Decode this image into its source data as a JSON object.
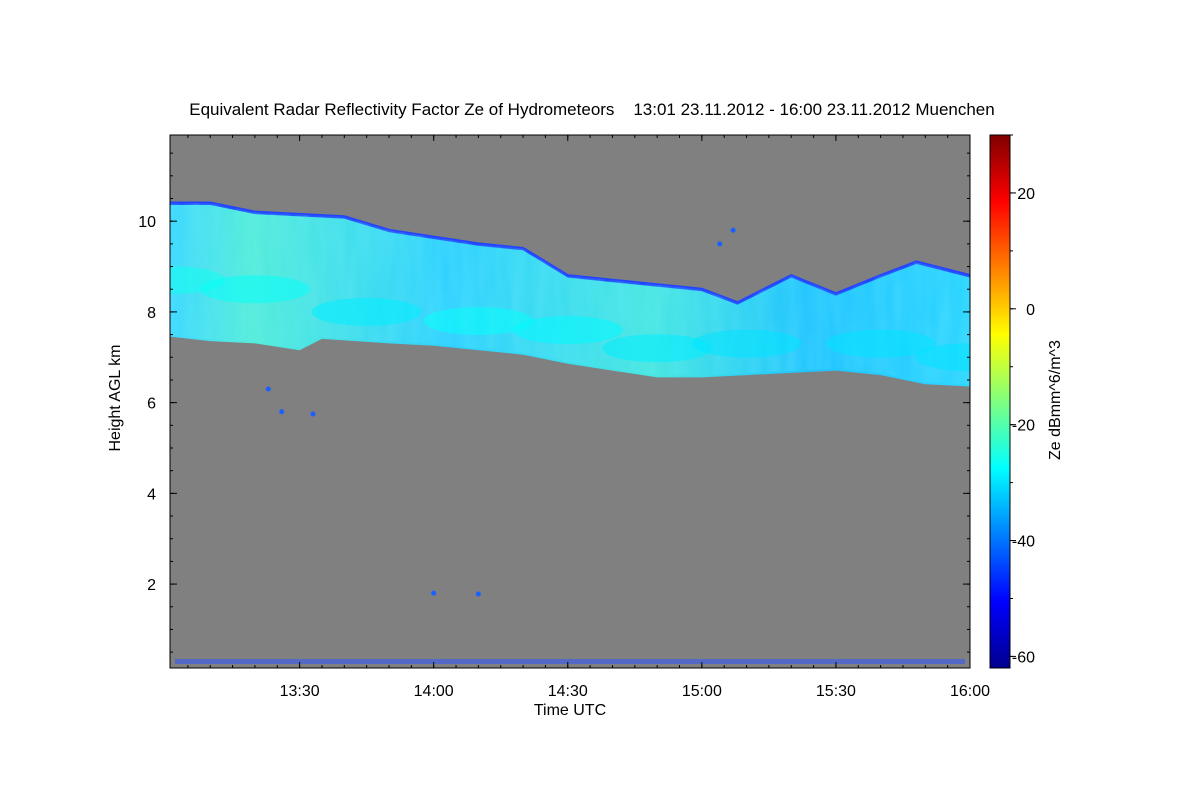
{
  "chart_data": {
    "type": "heatmap",
    "title": "Equivalent Radar Reflectivity Factor Ze of Hydrometeors    13:01 23.11.2012 - 16:00 23.11.2012 Muenchen",
    "xlabel": "Time UTC",
    "ylabel": "Height AGL km",
    "colorbar_label": "Ze dBmm^6/m^3",
    "xlim": [
      "13:01",
      "16:00"
    ],
    "ylim": [
      0.15,
      11.9
    ],
    "zlim": [
      -62,
      30
    ],
    "x_ticks": [
      "13:30",
      "14:00",
      "14:30",
      "15:00",
      "15:30",
      "16:00"
    ],
    "y_ticks": [
      2,
      4,
      6,
      8,
      10
    ],
    "colorbar_ticks": [
      -60,
      -40,
      -20,
      0,
      20
    ],
    "background_color": "#808080",
    "colormap": "jet",
    "cloud_layer": {
      "description_top": [
        [
          "13:01",
          10.4
        ],
        [
          "13:10",
          10.4
        ],
        [
          "13:20",
          10.2
        ],
        [
          "13:40",
          10.1
        ],
        [
          "13:50",
          9.8
        ],
        [
          "14:00",
          9.65
        ],
        [
          "14:10",
          9.5
        ],
        [
          "14:20",
          9.4
        ],
        [
          "14:30",
          8.8
        ],
        [
          "14:40",
          8.7
        ],
        [
          "14:50",
          8.6
        ],
        [
          "15:00",
          8.5
        ],
        [
          "15:08",
          8.2
        ],
        [
          "15:20",
          8.8
        ],
        [
          "15:30",
          8.4
        ],
        [
          "15:40",
          8.8
        ],
        [
          "15:48",
          9.1
        ],
        [
          "16:00",
          8.8
        ]
      ],
      "base": [
        [
          "13:01",
          7.5
        ],
        [
          "13:10",
          7.4
        ],
        [
          "13:20",
          7.35
        ],
        [
          "13:30",
          7.2
        ],
        [
          "13:35",
          7.45
        ],
        [
          "13:50",
          7.35
        ],
        [
          "14:00",
          7.3
        ],
        [
          "14:20",
          7.1
        ],
        [
          "14:30",
          6.9
        ],
        [
          "14:40",
          6.75
        ],
        [
          "14:50",
          6.6
        ],
        [
          "15:00",
          6.6
        ],
        [
          "15:10",
          6.65
        ],
        [
          "15:20",
          6.7
        ],
        [
          "15:30",
          6.75
        ],
        [
          "15:40",
          6.65
        ],
        [
          "15:50",
          6.45
        ],
        [
          "16:00",
          6.4
        ]
      ],
      "core": [
        [
          "13:01",
          8.7,
          -26
        ],
        [
          "13:20",
          8.5,
          -27
        ],
        [
          "13:45",
          8.0,
          -29
        ],
        [
          "14:10",
          7.8,
          -27
        ],
        [
          "14:30",
          7.6,
          -28
        ],
        [
          "14:50",
          7.2,
          -29
        ],
        [
          "15:10",
          7.3,
          -30
        ],
        [
          "15:40",
          7.3,
          -30
        ],
        [
          "16:00",
          7.0,
          -30
        ]
      ]
    }
  }
}
